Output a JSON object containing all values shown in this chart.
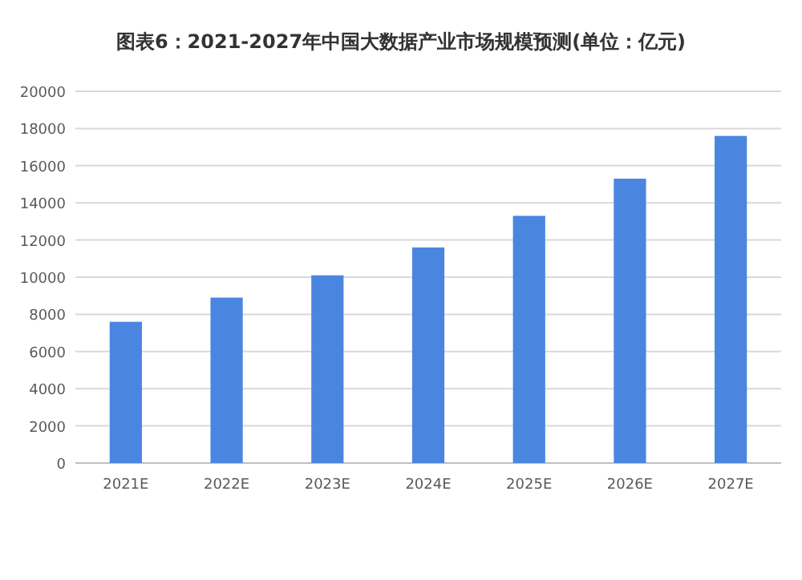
{
  "chart_data": {
    "type": "bar",
    "title": "图表6：2021-2027年中国大数据产业市场规模预测(单位：亿元)",
    "categories": [
      "2021E",
      "2022E",
      "2023E",
      "2024E",
      "2025E",
      "2026E",
      "2027E"
    ],
    "values": [
      7600,
      8900,
      10100,
      11600,
      13300,
      15300,
      17600
    ],
    "color": "#4a86e0",
    "ylim": [
      0,
      20000
    ],
    "yticks": [
      0,
      2000,
      4000,
      6000,
      8000,
      10000,
      12000,
      14000,
      16000,
      18000,
      20000
    ],
    "grid": "y"
  }
}
